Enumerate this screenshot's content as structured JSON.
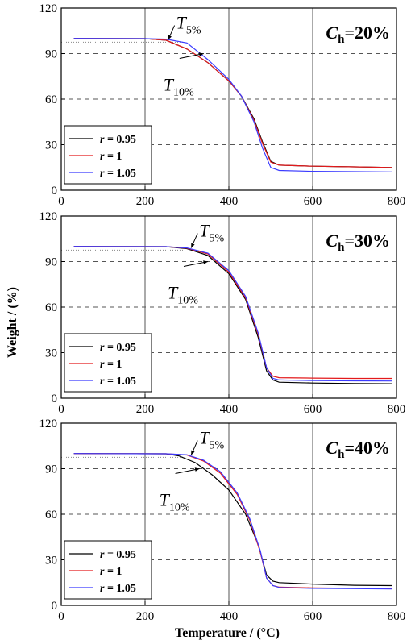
{
  "figure": {
    "ylabel": "Weight / (%)",
    "xlabel": "Temperature / (°C)"
  },
  "chart_data": [
    {
      "type": "line",
      "panel_label": {
        "main": "C",
        "sub": "h",
        "rest": "=20%"
      },
      "annotations": [
        {
          "main": "T",
          "sub": "5%",
          "x": 255,
          "y": 99
        },
        {
          "main": "T",
          "sub": "10%",
          "x": 340,
          "y": 90
        }
      ],
      "reference_lines": {
        "dashed_y": [
          90,
          60,
          30
        ],
        "dotted_y": [
          97.5
        ],
        "vertical_x": [
          200,
          400,
          600
        ]
      },
      "xlim": [
        0,
        800
      ],
      "ylim": [
        0,
        120
      ],
      "xticks": [
        0,
        200,
        400,
        600,
        800
      ],
      "yticks": [
        0,
        30,
        60,
        90,
        120
      ],
      "legend": {
        "position": "bottom-left"
      },
      "series": [
        {
          "name": "r = 0.95",
          "color": "#000000",
          "x": [
            30,
            200,
            250,
            300,
            350,
            400,
            430,
            460,
            480,
            500,
            520,
            600,
            700,
            790
          ],
          "y": [
            100,
            99.8,
            98.8,
            93,
            84,
            72,
            62,
            47,
            32,
            19,
            16.5,
            15.8,
            15.4,
            15
          ]
        },
        {
          "name": "r = 1",
          "color": "#e31a1c",
          "x": [
            30,
            200,
            250,
            300,
            350,
            400,
            430,
            460,
            480,
            500,
            520,
            600,
            700,
            790
          ],
          "y": [
            100,
            99.8,
            98.8,
            93,
            84,
            72,
            62,
            46,
            31,
            18.5,
            16.5,
            15.8,
            15.4,
            15
          ]
        },
        {
          "name": "r = 1.05",
          "color": "#3b3bff",
          "x": [
            30,
            200,
            250,
            300,
            350,
            400,
            430,
            460,
            480,
            500,
            520,
            600,
            700,
            790
          ],
          "y": [
            100,
            99.8,
            99.5,
            97,
            86,
            73,
            62,
            45,
            28,
            15,
            13,
            12.4,
            12.2,
            12
          ]
        }
      ]
    },
    {
      "type": "line",
      "panel_label": {
        "main": "C",
        "sub": "h",
        "rest": "=30%"
      },
      "annotations": [
        {
          "main": "T",
          "sub": "5%",
          "x": 310,
          "y": 99
        },
        {
          "main": "T",
          "sub": "10%",
          "x": 350,
          "y": 90
        }
      ],
      "reference_lines": {
        "dashed_y": [
          90,
          60,
          30
        ],
        "dotted_y": [
          97.5
        ],
        "vertical_x": [
          200,
          400,
          600
        ]
      },
      "xlim": [
        0,
        800
      ],
      "ylim": [
        0,
        120
      ],
      "xticks": [
        0,
        200,
        400,
        600,
        800
      ],
      "yticks": [
        0,
        30,
        60,
        90,
        120
      ],
      "legend": {
        "position": "bottom-left"
      },
      "series": [
        {
          "name": "r = 0.95",
          "color": "#000000",
          "x": [
            30,
            250,
            300,
            350,
            400,
            440,
            470,
            490,
            505,
            520,
            600,
            700,
            790
          ],
          "y": [
            100,
            99.8,
            98.5,
            94,
            82,
            65,
            40,
            18,
            12,
            10.5,
            10,
            9.6,
            9.5
          ]
        },
        {
          "name": "r = 1",
          "color": "#e31a1c",
          "x": [
            30,
            250,
            300,
            350,
            400,
            440,
            470,
            490,
            505,
            520,
            600,
            700,
            790
          ],
          "y": [
            100,
            99.8,
            98.8,
            95,
            83,
            66,
            42,
            20,
            14.5,
            13.5,
            13.2,
            13,
            13
          ]
        },
        {
          "name": "r = 1.05",
          "color": "#3b3bff",
          "x": [
            30,
            250,
            300,
            350,
            400,
            440,
            470,
            490,
            505,
            520,
            600,
            700,
            790
          ],
          "y": [
            100,
            99.8,
            99,
            95.5,
            84,
            67,
            43,
            20,
            13,
            12,
            11.6,
            11.4,
            11.3
          ]
        }
      ]
    },
    {
      "type": "line",
      "panel_label": {
        "main": "C",
        "sub": "h",
        "rest": "=40%"
      },
      "annotations": [
        {
          "main": "T",
          "sub": "5%",
          "x": 310,
          "y": 99
        },
        {
          "main": "T",
          "sub": "10%",
          "x": 330,
          "y": 90
        }
      ],
      "reference_lines": {
        "dashed_y": [
          90,
          60,
          30
        ],
        "dotted_y": [
          97.5
        ],
        "vertical_x": [
          200,
          400,
          600
        ]
      },
      "xlim": [
        0,
        800
      ],
      "ylim": [
        0,
        120
      ],
      "xticks": [
        0,
        200,
        400,
        600,
        800
      ],
      "yticks": [
        0,
        30,
        60,
        90,
        120
      ],
      "legend": {
        "position": "bottom-left"
      },
      "series": [
        {
          "name": "r = 0.95",
          "color": "#000000",
          "x": [
            30,
            250,
            280,
            320,
            360,
            400,
            440,
            470,
            490,
            505,
            520,
            600,
            700,
            790
          ],
          "y": [
            100,
            99.8,
            98.5,
            94,
            86,
            76,
            60,
            40,
            20,
            16,
            15,
            14,
            13.2,
            13
          ]
        },
        {
          "name": "r = 1",
          "color": "#e31a1c",
          "x": [
            30,
            250,
            300,
            340,
            380,
            420,
            450,
            475,
            490,
            505,
            520,
            600,
            700,
            790
          ],
          "y": [
            100,
            99.8,
            99,
            95,
            87,
            73,
            56,
            35,
            18,
            13,
            12,
            11.5,
            11.2,
            11
          ]
        },
        {
          "name": "r = 1.05",
          "color": "#3b3bff",
          "x": [
            30,
            250,
            300,
            340,
            380,
            420,
            450,
            475,
            490,
            505,
            520,
            600,
            700,
            790
          ],
          "y": [
            100,
            99.8,
            99.2,
            95.5,
            88,
            74,
            57,
            36,
            18,
            13,
            11.8,
            11.2,
            11,
            10.8
          ]
        }
      ]
    }
  ]
}
